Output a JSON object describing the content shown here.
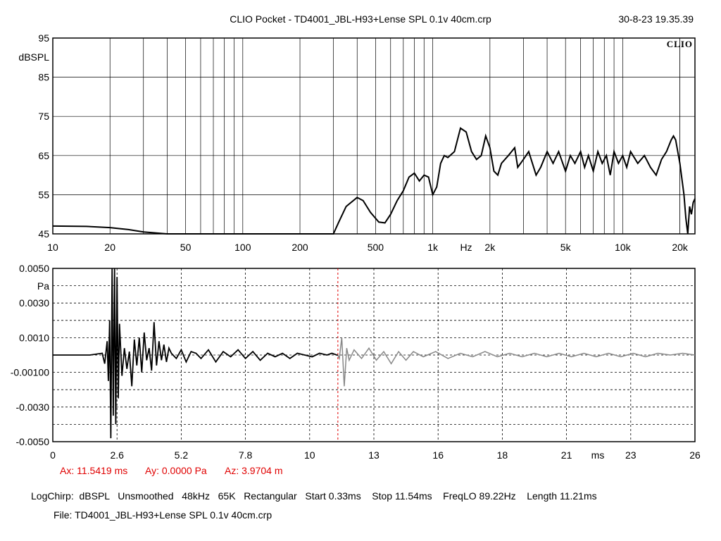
{
  "header": {
    "title": "CLIO Pocket - TD4001_JBL-H93+Lense SPL 0.1v 40cm.crp",
    "timestamp": "30-8-23 19.35.39",
    "logo": "CLIO"
  },
  "cursor": {
    "ax": "Ax: 11.5419 ms",
    "ay": "Ay: 0.0000 Pa",
    "az": "Az: 3.9704 m",
    "color": "#e00000"
  },
  "footer": {
    "params": "LogChirp:  dBSPL   Unsmoothed   48kHz   65K   Rectangular   Start 0.33ms    Stop 11.54ms    FreqLO 89.22Hz    Length 11.21ms",
    "file": "File: TD4001_JBL-H93+Lense SPL 0.1v 40cm.crp"
  },
  "chart_data": [
    {
      "type": "line",
      "name": "frequency-response",
      "xscale": "log",
      "xlim": [
        10,
        24000
      ],
      "ylim": [
        45,
        95
      ],
      "ylabel": "dBSPL",
      "xunit": "Hz",
      "grid": true,
      "xticks": [
        {
          "v": 10,
          "t": "10"
        },
        {
          "v": 20,
          "t": "20"
        },
        {
          "v": 50,
          "t": "50"
        },
        {
          "v": 100,
          "t": "100"
        },
        {
          "v": 200,
          "t": "200"
        },
        {
          "v": 500,
          "t": "500"
        },
        {
          "v": 1000,
          "t": "1k"
        },
        {
          "v": 2000,
          "t": "2k"
        },
        {
          "v": 5000,
          "t": "5k"
        },
        {
          "v": 10000,
          "t": "10k"
        },
        {
          "v": 20000,
          "t": "20k"
        }
      ],
      "yticks": [
        95,
        85,
        75,
        65,
        55,
        45
      ],
      "line_color": "#000000",
      "x": [
        10,
        15,
        20,
        25,
        30,
        40,
        60,
        100,
        200,
        300,
        320,
        350,
        400,
        430,
        470,
        520,
        560,
        600,
        650,
        700,
        750,
        800,
        850,
        900,
        950,
        1000,
        1050,
        1100,
        1150,
        1200,
        1300,
        1400,
        1500,
        1600,
        1700,
        1800,
        1900,
        2000,
        2100,
        2200,
        2300,
        2500,
        2700,
        2800,
        3000,
        3200,
        3500,
        3700,
        4000,
        4300,
        4600,
        5000,
        5300,
        5600,
        6000,
        6300,
        6600,
        7000,
        7400,
        7800,
        8200,
        8600,
        9000,
        9500,
        10000,
        10500,
        11000,
        12000,
        13000,
        14000,
        15000,
        16000,
        17000,
        18000,
        18500,
        19000,
        20000,
        21000,
        21500,
        22000,
        22500,
        23000,
        23500,
        24000
      ],
      "y": [
        47,
        46.9,
        46.6,
        46.1,
        45.5,
        45,
        45,
        45,
        45,
        45,
        48,
        52,
        54.3,
        53.5,
        50.5,
        48,
        47.8,
        50,
        53.5,
        56,
        59.5,
        60.5,
        58.5,
        60,
        59.5,
        55,
        57,
        63,
        65,
        64.5,
        66,
        72,
        71,
        66,
        64,
        65,
        70,
        67,
        61,
        60,
        63,
        65,
        67,
        62,
        64,
        66,
        60,
        62,
        66,
        63,
        66,
        61,
        65,
        63,
        66,
        62,
        65,
        61,
        66,
        63,
        65,
        60,
        66,
        63,
        65,
        62,
        66,
        63,
        65,
        62,
        60,
        64,
        66,
        69,
        70,
        69,
        63,
        55,
        49,
        45,
        52,
        50,
        53,
        54
      ]
    },
    {
      "type": "line",
      "name": "impulse-response",
      "xlim": [
        0,
        26
      ],
      "ylim": [
        -0.005,
        0.005
      ],
      "ylabel": "Pa",
      "xunit": "ms",
      "grid": "dashed",
      "xticks": [
        {
          "v": 0,
          "t": "0"
        },
        {
          "v": 2.6,
          "t": "2.6"
        },
        {
          "v": 5.2,
          "t": "5.2"
        },
        {
          "v": 7.8,
          "t": "7.8"
        },
        {
          "v": 10.4,
          "t": "10"
        },
        {
          "v": 13,
          "t": "13"
        },
        {
          "v": 15.6,
          "t": "16"
        },
        {
          "v": 18.2,
          "t": "18"
        },
        {
          "v": 20.8,
          "t": "21"
        },
        {
          "v": 23.4,
          "t": "23"
        },
        {
          "v": 26,
          "t": "26"
        }
      ],
      "yticks": [
        {
          "v": 0.005,
          "t": "0.0050"
        },
        {
          "v": 0.003,
          "t": "0.0030"
        },
        {
          "v": 0.001,
          "t": "0.0010"
        },
        {
          "v": -0.001,
          "t": "-0.00100"
        },
        {
          "v": -0.003,
          "t": "-0.0030"
        },
        {
          "v": -0.005,
          "t": "-0.0050"
        }
      ],
      "cursor_x": 11.5419,
      "window_end": 11.54,
      "gated_color": "#000000",
      "ungated_color": "#888888",
      "x": [
        0,
        1.5,
        2.0,
        2.1,
        2.2,
        2.25,
        2.3,
        2.35,
        2.4,
        2.45,
        2.5,
        2.55,
        2.6,
        2.65,
        2.7,
        2.8,
        2.9,
        3.0,
        3.1,
        3.2,
        3.3,
        3.4,
        3.5,
        3.6,
        3.7,
        3.8,
        3.9,
        4.0,
        4.1,
        4.2,
        4.3,
        4.4,
        4.5,
        4.6,
        4.7,
        4.8,
        5.0,
        5.2,
        5.4,
        5.6,
        5.8,
        6.0,
        6.3,
        6.6,
        6.9,
        7.2,
        7.5,
        7.8,
        8.1,
        8.4,
        8.7,
        9.0,
        9.3,
        9.6,
        9.9,
        10.2,
        10.5,
        10.8,
        11.1,
        11.3,
        11.5,
        11.54,
        11.6,
        11.7,
        11.8,
        11.9,
        12.0,
        12.2,
        12.5,
        12.8,
        13.1,
        13.4,
        13.7,
        14.0,
        14.3,
        14.6,
        15.0,
        15.5,
        16.0,
        16.5,
        17.0,
        17.5,
        18.0,
        18.5,
        19.0,
        19.5,
        20.0,
        20.5,
        21.0,
        21.5,
        22.0,
        22.5,
        23.0,
        23.5,
        24.0,
        24.5,
        25.0,
        25.5,
        26.0
      ],
      "y": [
        0,
        0,
        0.0001,
        -0.0005,
        0.0008,
        -0.0015,
        0.002,
        -0.0048,
        0.005,
        -0.0035,
        0.005,
        -0.004,
        0.0045,
        -0.0025,
        0.0018,
        -0.0012,
        0.0004,
        -0.0008,
        0.0002,
        -0.0018,
        0.0009,
        -0.0006,
        0.001,
        -0.001,
        0.0013,
        -0.0003,
        0.0004,
        -0.0009,
        0.0019,
        -0.0006,
        0.0008,
        -0.0003,
        0.0006,
        -0.0004,
        0.0004,
        0.0001,
        -0.0002,
        0.0003,
        -0.0004,
        0.0002,
        0.0001,
        -0.0002,
        0.0003,
        -0.0004,
        0.0002,
        -0.0001,
        0.0003,
        -0.0002,
        0.0002,
        -0.0003,
        0.0001,
        -0.0001,
        0.0001,
        -0.0002,
        0.0001,
        0,
        -0.0001,
        0.0001,
        0,
        0.0001,
        0,
        0,
        -0.0002,
        0.001,
        -0.0018,
        0.0004,
        -0.0003,
        0.0003,
        -0.0002,
        0.0004,
        -0.0003,
        0.0002,
        -0.0005,
        0.0002,
        -0.0003,
        0.0002,
        -0.0001,
        0.0002,
        -0.0002,
        0.0001,
        -0.0001,
        0.0002,
        -0.0001,
        0.0001,
        -0.0001,
        0.0001,
        -0.0001,
        0.0001,
        -0.0001,
        0.0001,
        -0.0001,
        0.0001,
        -0.0001,
        0.0001,
        -0.0001,
        0.0001,
        0,
        0.0001,
        0
      ]
    }
  ]
}
